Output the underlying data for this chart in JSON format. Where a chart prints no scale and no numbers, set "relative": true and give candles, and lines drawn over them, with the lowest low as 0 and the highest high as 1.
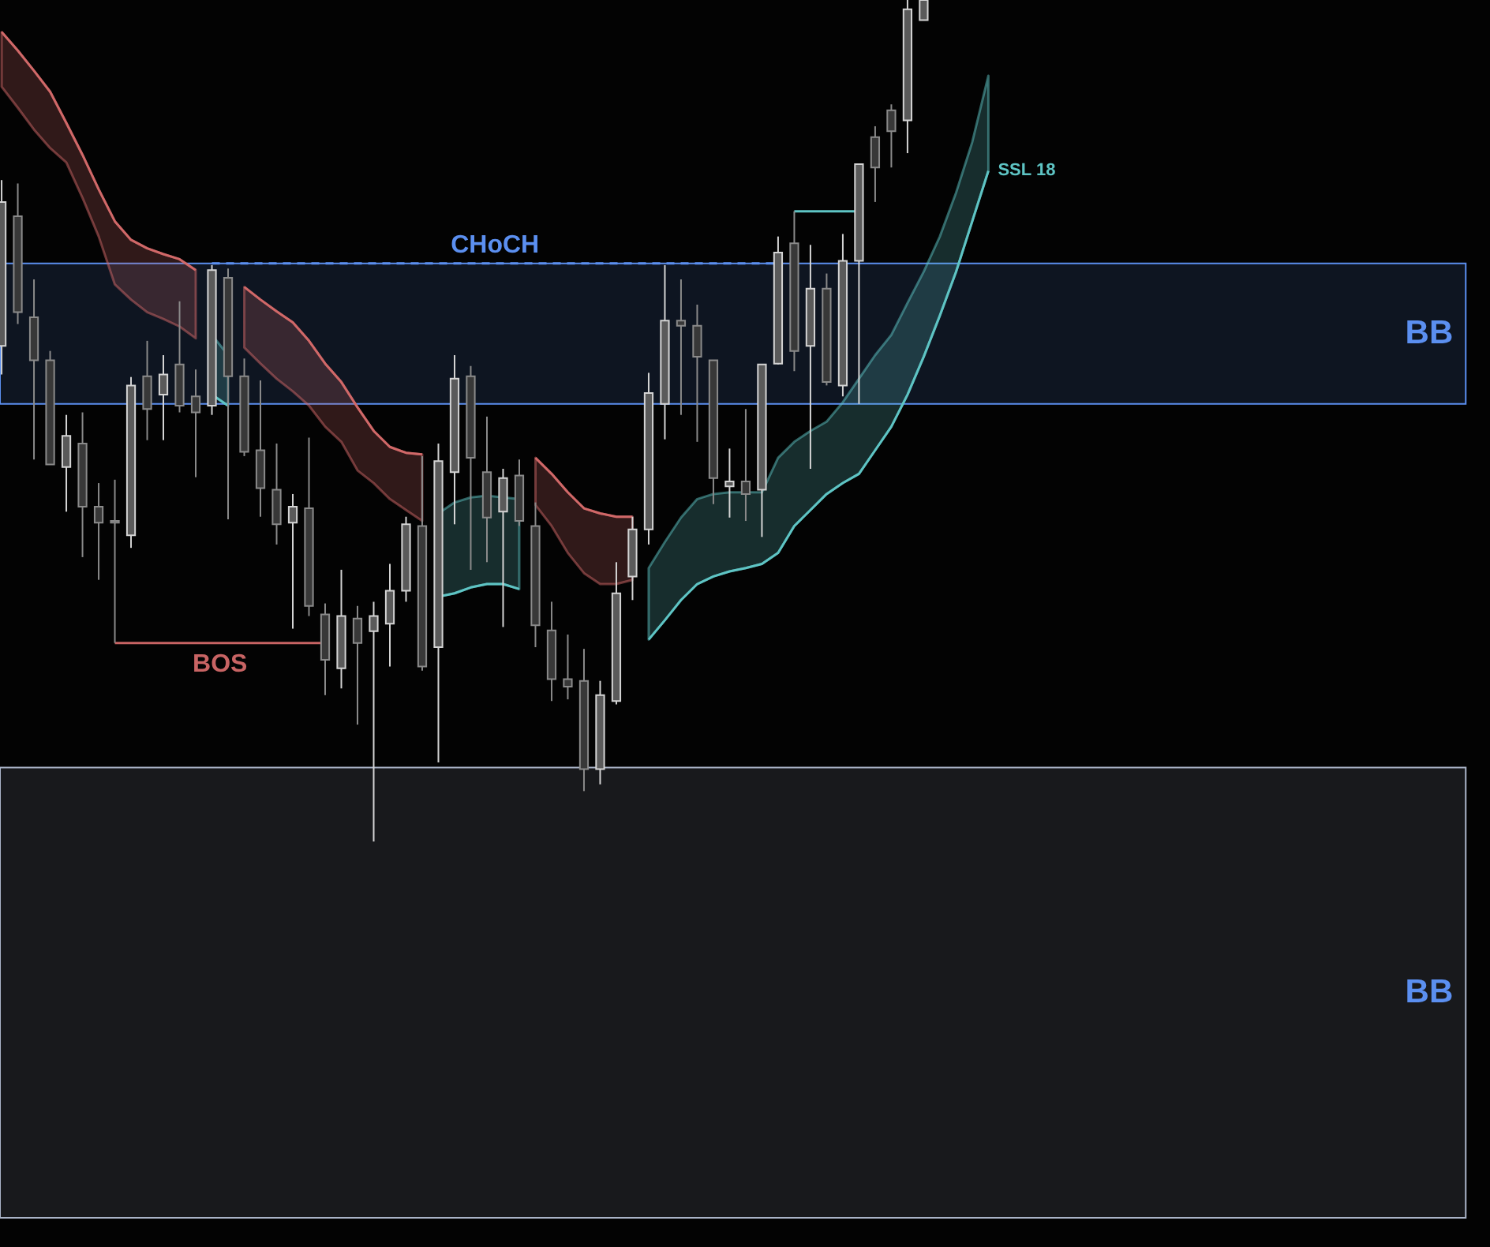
{
  "chart_data": {
    "type": "candlestick",
    "relative": true,
    "categories": [
      null,
      null,
      null,
      null,
      null,
      null,
      null,
      null,
      null,
      null,
      null,
      null,
      null,
      null,
      null,
      null,
      null,
      null,
      null,
      null,
      null,
      null,
      null,
      null,
      null,
      null,
      null,
      null,
      null,
      null,
      null,
      null,
      null,
      null,
      null,
      null,
      null,
      null,
      null,
      null,
      null,
      null,
      null,
      null,
      null,
      null,
      null,
      null,
      null,
      null,
      null,
      null,
      null,
      null,
      null,
      null,
      null,
      null,
      null,
      null,
      null,
      null
    ],
    "ohlc": [
      [
        0.589,
        0.786,
        0.555,
        0.76
      ],
      [
        0.743,
        0.782,
        0.615,
        0.629
      ],
      [
        0.623,
        0.668,
        0.454,
        0.572
      ],
      [
        0.572,
        0.583,
        0.448,
        0.448
      ],
      [
        0.445,
        0.507,
        0.392,
        0.482
      ],
      [
        0.473,
        0.51,
        0.338,
        0.398
      ],
      [
        0.398,
        0.426,
        0.311,
        0.379
      ],
      [
        0.381,
        0.43,
        0.236,
        0.379
      ],
      [
        0.364,
        0.552,
        0.349,
        0.542
      ],
      [
        0.553,
        0.595,
        0.477,
        0.514
      ],
      [
        0.531,
        0.578,
        0.477,
        0.555
      ],
      [
        0.567,
        0.642,
        0.51,
        0.518
      ],
      [
        0.529,
        0.561,
        0.433,
        0.51
      ],
      [
        0.518,
        0.685,
        0.507,
        0.679
      ],
      [
        0.67,
        0.681,
        0.383,
        0.553
      ],
      [
        0.553,
        0.574,
        0.458,
        0.463
      ],
      [
        0.465,
        0.548,
        0.386,
        0.42
      ],
      [
        0.418,
        0.473,
        0.353,
        0.377
      ],
      [
        0.379,
        0.413,
        0.253,
        0.398
      ],
      [
        0.396,
        0.48,
        0.268,
        0.28
      ],
      [
        0.27,
        0.283,
        0.174,
        0.216
      ],
      [
        0.206,
        0.323,
        0.182,
        0.268
      ],
      [
        0.265,
        0.28,
        0.139,
        0.236
      ],
      [
        0.25,
        0.285,
        0,
        0.268
      ],
      [
        0.259,
        0.33,
        0.208,
        0.298
      ],
      [
        0.298,
        0.386,
        0.285,
        0.377
      ],
      [
        0.375,
        0.458,
        0.203,
        0.208
      ],
      [
        0.231,
        0.473,
        0.094,
        0.452
      ],
      [
        0.439,
        0.578,
        0.377,
        0.55
      ],
      [
        0.553,
        0.565,
        0.323,
        0.456
      ],
      [
        0.439,
        0.505,
        0.332,
        0.385
      ],
      [
        0.392,
        0.443,
        0.255,
        0.432
      ],
      [
        0.435,
        0.454,
        0.375,
        0.381
      ],
      [
        0.375,
        0.403,
        0.231,
        0.257
      ],
      [
        0.251,
        0.285,
        0.167,
        0.193
      ],
      [
        0.193,
        0.246,
        0.169,
        0.184
      ],
      [
        0.191,
        0.229,
        0.06,
        0.086
      ],
      [
        0.086,
        0.191,
        0.068,
        0.174
      ],
      [
        0.167,
        0.332,
        0.163,
        0.295
      ],
      [
        0.315,
        0.386,
        0.287,
        0.371
      ],
      [
        0.371,
        0.557,
        0.353,
        0.533
      ],
      [
        0.52,
        0.685,
        0.478,
        0.619
      ],
      [
        0.619,
        0.668,
        0.507,
        0.613
      ],
      [
        0.613,
        0.638,
        0.475,
        0.576
      ],
      [
        0.572,
        0.572,
        0.401,
        0.432
      ],
      [
        0.422,
        0.467,
        0.385,
        0.428
      ],
      [
        0.428,
        0.514,
        0.381,
        0.413
      ],
      [
        0.418,
        0.567,
        0.362,
        0.567
      ],
      [
        0.568,
        0.719,
        0.567,
        0.7
      ],
      [
        0.711,
        0.749,
        0.559,
        0.583
      ],
      [
        0.589,
        0.709,
        0.443,
        0.657
      ],
      [
        0.657,
        0.675,
        0.542,
        0.546
      ],
      [
        0.542,
        0.722,
        0.529,
        0.69
      ],
      [
        0.69,
        0.805,
        0.52,
        0.805
      ],
      [
        0.837,
        0.85,
        0.76,
        0.801
      ],
      [
        0.869,
        0.876,
        0.801,
        0.844
      ],
      [
        0.857,
        1,
        0.818,
        0.989
      ],
      [
        0.976,
        1,
        0.976,
        1
      ],
      null,
      null,
      null,
      null
    ],
    "series": [
      {
        "type": "line",
        "color": "#d06868",
        "values": [
          0.962,
          0.94,
          0.916,
          0.891,
          0.854,
          0.816,
          0.775,
          0.737,
          0.715,
          0.705,
          0.698,
          0.692,
          0.679,
          null,
          null,
          null,
          null,
          null,
          null,
          null,
          null,
          null,
          null,
          null,
          null,
          null,
          null,
          null,
          null,
          null,
          null,
          null,
          null,
          null,
          null,
          null,
          null,
          null,
          null,
          null,
          null,
          null,
          null,
          null,
          null,
          null,
          null,
          null,
          null,
          null,
          null,
          null,
          null,
          null,
          null,
          null,
          null,
          null,
          null,
          null,
          null,
          null
        ],
        "lower": [
          0.897,
          0.872,
          0.846,
          0.824,
          0.807,
          0.765,
          0.719,
          0.662,
          0.644,
          0.629,
          0.621,
          0.612,
          0.598,
          null,
          null,
          null,
          null,
          null,
          null,
          null,
          null,
          null,
          null,
          null,
          null,
          null,
          null,
          null,
          null,
          null,
          null,
          null,
          null,
          null,
          null,
          null,
          null,
          null,
          null,
          null,
          null,
          null,
          null,
          null,
          null,
          null,
          null,
          null,
          null,
          null,
          null,
          null,
          null,
          null,
          null,
          null,
          null,
          null,
          null,
          null,
          null,
          null
        ],
        "upper": [
          0.962,
          0.94,
          0.916,
          0.891,
          0.854,
          0.816,
          0.775,
          0.737,
          0.715,
          0.705,
          0.698,
          0.692,
          0.679,
          null,
          null,
          null,
          null,
          null,
          null,
          null,
          null,
          null,
          null,
          null,
          null,
          null,
          null,
          null,
          null,
          null,
          null,
          null,
          null,
          null,
          null,
          null,
          null,
          null,
          null,
          null,
          null,
          null,
          null,
          null,
          null,
          null,
          null,
          null,
          null,
          null,
          null,
          null,
          null,
          null,
          null,
          null,
          null,
          null,
          null,
          null,
          null,
          null
        ]
      },
      {
        "type": "line",
        "color": "#5ec4c4",
        "values": [
          null,
          null,
          null,
          null,
          null,
          null,
          null,
          null,
          null,
          null,
          null,
          null,
          null,
          0.531,
          0.518,
          null,
          null,
          null,
          null,
          null,
          null,
          null,
          null,
          null,
          null,
          null,
          null,
          null,
          null,
          null,
          null,
          null,
          null,
          null,
          null,
          null,
          null,
          null,
          null,
          null,
          null,
          null,
          null,
          null,
          null,
          null,
          null,
          null,
          null,
          null,
          null,
          null,
          null,
          null,
          null,
          null,
          null,
          null,
          null,
          null,
          null,
          null
        ],
        "lower": [
          null,
          null,
          null,
          null,
          null,
          null,
          null,
          null,
          null,
          null,
          null,
          null,
          null,
          0.531,
          0.518,
          null,
          null,
          null,
          null,
          null,
          null,
          null,
          null,
          null,
          null,
          null,
          null,
          null,
          null,
          null,
          null,
          null,
          null,
          null,
          null,
          null,
          null,
          null,
          null,
          null,
          null,
          null,
          null,
          null,
          null,
          null,
          null,
          null,
          null,
          null,
          null,
          null,
          null,
          null,
          null,
          null,
          null,
          null,
          null,
          null,
          null,
          null
        ],
        "upper": [
          null,
          null,
          null,
          null,
          null,
          null,
          null,
          null,
          null,
          null,
          null,
          null,
          null,
          0.602,
          0.578,
          null,
          null,
          null,
          null,
          null,
          null,
          null,
          null,
          null,
          null,
          null,
          null,
          null,
          null,
          null,
          null,
          null,
          null,
          null,
          null,
          null,
          null,
          null,
          null,
          null,
          null,
          null,
          null,
          null,
          null,
          null,
          null,
          null,
          null,
          null,
          null,
          null,
          null,
          null,
          null,
          null,
          null,
          null,
          null,
          null,
          null,
          null
        ]
      },
      {
        "type": "line",
        "color": "#d06868",
        "values": [
          null,
          null,
          null,
          null,
          null,
          null,
          null,
          null,
          null,
          null,
          null,
          null,
          null,
          null,
          null,
          0.659,
          0.644,
          0.63,
          0.617,
          0.595,
          0.568,
          0.546,
          0.516,
          0.488,
          0.469,
          0.462,
          0.46,
          null,
          null,
          null,
          null,
          null,
          null,
          null,
          null,
          null,
          null,
          null,
          null,
          null,
          null,
          null,
          null,
          null,
          null,
          null,
          null,
          null,
          null,
          null,
          null,
          null,
          null,
          null,
          null,
          null,
          null,
          null,
          null,
          null,
          null,
          null
        ],
        "lower": [
          null,
          null,
          null,
          null,
          null,
          null,
          null,
          null,
          null,
          null,
          null,
          null,
          null,
          null,
          null,
          0.587,
          0.568,
          0.55,
          0.535,
          0.518,
          0.493,
          0.475,
          0.441,
          0.426,
          0.407,
          0.394,
          0.381,
          null,
          null,
          null,
          null,
          null,
          null,
          null,
          null,
          null,
          null,
          null,
          null,
          null,
          null,
          null,
          null,
          null,
          null,
          null,
          null,
          null,
          null,
          null,
          null,
          null,
          null,
          null,
          null,
          null,
          null,
          null,
          null,
          null,
          null,
          null
        ],
        "upper": [
          null,
          null,
          null,
          null,
          null,
          null,
          null,
          null,
          null,
          null,
          null,
          null,
          null,
          null,
          null,
          0.659,
          0.644,
          0.63,
          0.617,
          0.595,
          0.568,
          0.546,
          0.516,
          0.488,
          0.469,
          0.462,
          0.46,
          null,
          null,
          null,
          null,
          null,
          null,
          null,
          null,
          null,
          null,
          null,
          null,
          null,
          null,
          null,
          null,
          null,
          null,
          null,
          null,
          null,
          null,
          null,
          null,
          null,
          null,
          null,
          null,
          null,
          null,
          null,
          null,
          null,
          null,
          null
        ]
      },
      {
        "type": "line",
        "color": "#5ec4c4",
        "values": [
          null,
          null,
          null,
          null,
          null,
          null,
          null,
          null,
          null,
          null,
          null,
          null,
          null,
          null,
          null,
          null,
          null,
          null,
          null,
          null,
          null,
          null,
          null,
          null,
          null,
          null,
          null,
          0.291,
          0.295,
          0.302,
          0.306,
          0.306,
          0.3,
          null,
          null,
          null,
          null,
          null,
          null,
          null,
          null,
          null,
          null,
          null,
          null,
          null,
          null,
          null,
          null,
          null,
          null,
          null,
          null,
          null,
          null,
          null,
          null,
          null,
          null,
          null,
          null,
          null
        ],
        "lower": [
          null,
          null,
          null,
          null,
          null,
          null,
          null,
          null,
          null,
          null,
          null,
          null,
          null,
          null,
          null,
          null,
          null,
          null,
          null,
          null,
          null,
          null,
          null,
          null,
          null,
          null,
          null,
          0.291,
          0.295,
          0.302,
          0.306,
          0.306,
          0.3,
          null,
          null,
          null,
          null,
          null,
          null,
          null,
          null,
          null,
          null,
          null,
          null,
          null,
          null,
          null,
          null,
          null,
          null,
          null,
          null,
          null,
          null,
          null,
          null,
          null,
          null,
          null,
          null,
          null
        ],
        "upper": [
          null,
          null,
          null,
          null,
          null,
          null,
          null,
          null,
          null,
          null,
          null,
          null,
          null,
          null,
          null,
          null,
          null,
          null,
          null,
          null,
          null,
          null,
          null,
          null,
          null,
          null,
          null,
          0.39,
          0.403,
          0.409,
          0.411,
          0.409,
          0.407,
          null,
          null,
          null,
          null,
          null,
          null,
          null,
          null,
          null,
          null,
          null,
          null,
          null,
          null,
          null,
          null,
          null,
          null,
          null,
          null,
          null,
          null,
          null,
          null,
          null,
          null,
          null,
          null,
          null
        ]
      },
      {
        "type": "line",
        "color": "#d06868",
        "values": [
          null,
          null,
          null,
          null,
          null,
          null,
          null,
          null,
          null,
          null,
          null,
          null,
          null,
          null,
          null,
          null,
          null,
          null,
          null,
          null,
          null,
          null,
          null,
          null,
          null,
          null,
          null,
          null,
          null,
          null,
          null,
          null,
          null,
          0.456,
          0.437,
          0.415,
          0.396,
          0.39,
          0.386,
          0.386,
          null,
          null,
          null,
          null,
          null,
          null,
          null,
          null,
          null,
          null,
          null,
          null,
          null,
          null,
          null,
          null,
          null,
          null,
          null,
          null,
          null,
          null
        ],
        "lower": [
          null,
          null,
          null,
          null,
          null,
          null,
          null,
          null,
          null,
          null,
          null,
          null,
          null,
          null,
          null,
          null,
          null,
          null,
          null,
          null,
          null,
          null,
          null,
          null,
          null,
          null,
          null,
          null,
          null,
          null,
          null,
          null,
          null,
          0.4,
          0.375,
          0.343,
          0.319,
          0.306,
          0.306,
          0.311,
          null,
          null,
          null,
          null,
          null,
          null,
          null,
          null,
          null,
          null,
          null,
          null,
          null,
          null,
          null,
          null,
          null,
          null,
          null,
          null,
          null,
          null
        ],
        "upper": [
          null,
          null,
          null,
          null,
          null,
          null,
          null,
          null,
          null,
          null,
          null,
          null,
          null,
          null,
          null,
          null,
          null,
          null,
          null,
          null,
          null,
          null,
          null,
          null,
          null,
          null,
          null,
          null,
          null,
          null,
          null,
          null,
          null,
          0.456,
          0.437,
          0.415,
          0.396,
          0.39,
          0.386,
          0.386,
          null,
          null,
          null,
          null,
          null,
          null,
          null,
          null,
          null,
          null,
          null,
          null,
          null,
          null,
          null,
          null,
          null,
          null,
          null,
          null,
          null,
          null
        ]
      },
      {
        "type": "line",
        "name": "SSL 18",
        "color": "#5ec4c4",
        "values": [
          null,
          null,
          null,
          null,
          null,
          null,
          null,
          null,
          null,
          null,
          null,
          null,
          null,
          null,
          null,
          null,
          null,
          null,
          null,
          null,
          null,
          null,
          null,
          null,
          null,
          null,
          null,
          null,
          null,
          null,
          null,
          null,
          null,
          null,
          null,
          null,
          null,
          null,
          null,
          null,
          0.24,
          0.263,
          0.287,
          0.306,
          0.315,
          0.321,
          0.325,
          0.33,
          0.343,
          0.375,
          0.394,
          0.413,
          0.426,
          0.437,
          0.465,
          0.493,
          0.531,
          0.576,
          0.625,
          0.677,
          0.737,
          0.797
        ],
        "lower": [
          null,
          null,
          null,
          null,
          null,
          null,
          null,
          null,
          null,
          null,
          null,
          null,
          null,
          null,
          null,
          null,
          null,
          null,
          null,
          null,
          null,
          null,
          null,
          null,
          null,
          null,
          null,
          null,
          null,
          null,
          null,
          null,
          null,
          null,
          null,
          null,
          null,
          null,
          null,
          null,
          0.24,
          0.263,
          0.287,
          0.306,
          0.315,
          0.321,
          0.325,
          0.33,
          0.343,
          0.375,
          0.394,
          0.413,
          0.426,
          0.437,
          0.465,
          0.493,
          0.531,
          0.576,
          0.625,
          0.677,
          0.737,
          0.797
        ],
        "upper": [
          null,
          null,
          null,
          null,
          null,
          null,
          null,
          null,
          null,
          null,
          null,
          null,
          null,
          null,
          null,
          null,
          null,
          null,
          null,
          null,
          null,
          null,
          null,
          null,
          null,
          null,
          null,
          null,
          null,
          null,
          null,
          null,
          null,
          null,
          null,
          null,
          null,
          null,
          null,
          null,
          0.325,
          0.356,
          0.385,
          0.407,
          0.413,
          0.415,
          0.415,
          0.415,
          0.456,
          0.475,
          0.488,
          0.499,
          0.522,
          0.55,
          0.578,
          0.602,
          0.64,
          0.677,
          0.719,
          0.771,
          0.831,
          0.91
        ]
      },
      {
        "type": "line",
        "name": "CHoCH",
        "color": "#5b8ff0",
        "line_style": "dashed",
        "values": [
          null,
          null,
          null,
          null,
          null,
          null,
          null,
          null,
          null,
          null,
          null,
          null,
          null,
          0.687,
          0.687,
          0.687,
          0.687,
          0.687,
          0.687,
          0.687,
          0.687,
          0.687,
          0.687,
          0.687,
          0.687,
          0.687,
          0.687,
          0.687,
          0.687,
          0.687,
          0.687,
          0.687,
          0.687,
          0.687,
          0.687,
          0.687,
          0.687,
          0.687,
          0.687,
          0.687,
          0.687,
          0.687,
          0.687,
          0.687,
          0.687,
          0.687,
          0.687,
          0.687,
          0.687,
          null,
          null,
          null,
          null,
          null,
          null,
          null,
          null,
          null,
          null,
          null,
          null,
          null
        ]
      },
      {
        "type": "line",
        "name": "BOS",
        "color": "#c86464",
        "values": [
          null,
          null,
          null,
          null,
          null,
          null,
          null,
          0.236,
          0.236,
          0.236,
          0.236,
          0.236,
          0.236,
          0.236,
          0.236,
          0.236,
          0.236,
          0.236,
          0.236,
          0.236,
          0.236,
          null,
          null,
          null,
          null,
          null,
          null,
          null,
          null,
          null,
          null,
          null,
          null,
          null,
          null,
          null,
          null,
          null,
          null,
          null,
          null,
          null,
          null,
          null,
          null,
          null,
          null,
          null,
          null,
          null,
          null,
          null,
          null,
          null,
          null,
          null,
          null,
          null,
          null,
          null,
          null,
          null
        ]
      },
      {
        "type": "line",
        "color": "#5ec4c4",
        "values": [
          null,
          null,
          null,
          null,
          null,
          null,
          null,
          null,
          null,
          null,
          null,
          null,
          null,
          null,
          null,
          null,
          null,
          null,
          null,
          null,
          null,
          null,
          null,
          null,
          null,
          null,
          null,
          null,
          null,
          null,
          null,
          null,
          null,
          null,
          null,
          null,
          null,
          null,
          null,
          null,
          null,
          null,
          null,
          null,
          null,
          null,
          null,
          null,
          null,
          0.749,
          0.749,
          0.749,
          0.749,
          0.749,
          null,
          null,
          null,
          null,
          null,
          null,
          null,
          null
        ]
      }
    ],
    "bands": [
      {
        "axis": "y",
        "from": 0.52,
        "to": 0.687,
        "label": "BB",
        "color": "#5b8ff0"
      },
      {
        "axis": "y",
        "from": -0.447,
        "to": 0.088,
        "label": "BB",
        "color": "#aab4c8"
      }
    ]
  }
}
